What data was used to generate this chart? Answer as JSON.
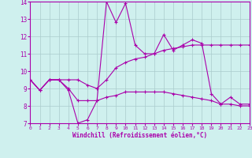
{
  "xlabel": "Windchill (Refroidissement éolien,°C)",
  "background_color": "#cff0ee",
  "grid_color": "#aacccc",
  "line_color": "#aa00aa",
  "xlim": [
    0,
    23
  ],
  "ylim": [
    7,
    14
  ],
  "yticks": [
    7,
    8,
    9,
    10,
    11,
    12,
    13,
    14
  ],
  "xticks": [
    0,
    1,
    2,
    3,
    4,
    5,
    6,
    7,
    8,
    9,
    10,
    11,
    12,
    13,
    14,
    15,
    16,
    17,
    18,
    19,
    20,
    21,
    22,
    23
  ],
  "line1_x": [
    0,
    1,
    2,
    3,
    4,
    5,
    6,
    7,
    8,
    9,
    10,
    11,
    12,
    13,
    14,
    15,
    16,
    17,
    18,
    19,
    20,
    21,
    22,
    23
  ],
  "line1_y": [
    9.5,
    8.9,
    9.5,
    9.5,
    8.9,
    7.0,
    7.2,
    8.3,
    14.0,
    12.8,
    13.9,
    11.5,
    11.0,
    11.0,
    12.1,
    11.2,
    11.5,
    11.8,
    11.6,
    8.7,
    8.1,
    8.5,
    8.1,
    8.1
  ],
  "line2_x": [
    0,
    1,
    2,
    3,
    4,
    5,
    6,
    7,
    8,
    9,
    10,
    11,
    12,
    13,
    14,
    15,
    16,
    17,
    18,
    19,
    20,
    21,
    22,
    23
  ],
  "line2_y": [
    9.5,
    8.9,
    9.5,
    9.5,
    9.5,
    9.5,
    9.2,
    9.0,
    9.5,
    10.2,
    10.5,
    10.7,
    10.8,
    11.0,
    11.2,
    11.3,
    11.4,
    11.5,
    11.5,
    11.5,
    11.5,
    11.5,
    11.5,
    11.5
  ],
  "line3_x": [
    0,
    1,
    2,
    3,
    4,
    5,
    6,
    7,
    8,
    9,
    10,
    11,
    12,
    13,
    14,
    15,
    16,
    17,
    18,
    19,
    20,
    21,
    22,
    23
  ],
  "line3_y": [
    9.5,
    8.9,
    9.5,
    9.5,
    9.0,
    8.3,
    8.3,
    8.3,
    8.5,
    8.6,
    8.8,
    8.8,
    8.8,
    8.8,
    8.8,
    8.7,
    8.6,
    8.5,
    8.4,
    8.3,
    8.1,
    8.1,
    8.0,
    8.0
  ]
}
